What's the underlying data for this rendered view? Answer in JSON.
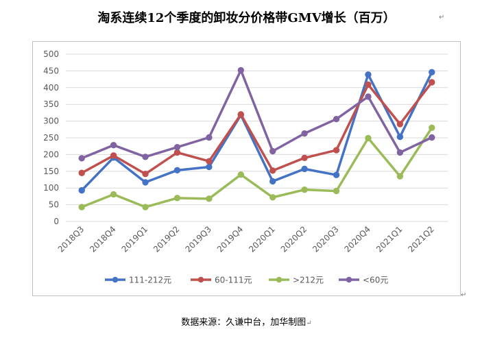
{
  "title": "淘系连续12个季度的卸妆分价格带GMV增长（百万）",
  "source": "数据来源：久谦中台，加华制图",
  "chart_data": {
    "type": "line",
    "title": "淘系连续12个季度的卸妆分价格带GMV增长（百万）",
    "xlabel": "",
    "ylabel": "",
    "categories": [
      "2018Q3",
      "2018Q4",
      "2019Q1",
      "2019Q2",
      "2019Q3",
      "2019Q4",
      "2020Q1",
      "2020Q2",
      "2020Q3",
      "2020Q4",
      "2021Q1",
      "2021Q2"
    ],
    "ylim": [
      0,
      500
    ],
    "yticks": [
      0,
      50,
      100,
      150,
      200,
      250,
      300,
      350,
      400,
      450,
      500
    ],
    "grid": true,
    "legend_position": "bottom",
    "series": [
      {
        "name": "111-212元",
        "color": "#4472c4",
        "values": [
          93,
          191,
          117,
          153,
          163,
          318,
          120,
          157,
          139,
          439,
          253,
          446
        ]
      },
      {
        "name": "60-111元",
        "color": "#c0504d",
        "values": [
          145,
          197,
          142,
          206,
          180,
          320,
          152,
          190,
          213,
          409,
          291,
          416
        ]
      },
      {
        "name": ">212元",
        "color": "#9bbb59",
        "values": [
          43,
          81,
          43,
          70,
          68,
          140,
          72,
          95,
          91,
          249,
          135,
          280
        ]
      },
      {
        "name": "<60元",
        "color": "#8064a2",
        "values": [
          189,
          228,
          193,
          222,
          251,
          452,
          210,
          263,
          306,
          373,
          206,
          251
        ]
      }
    ]
  }
}
